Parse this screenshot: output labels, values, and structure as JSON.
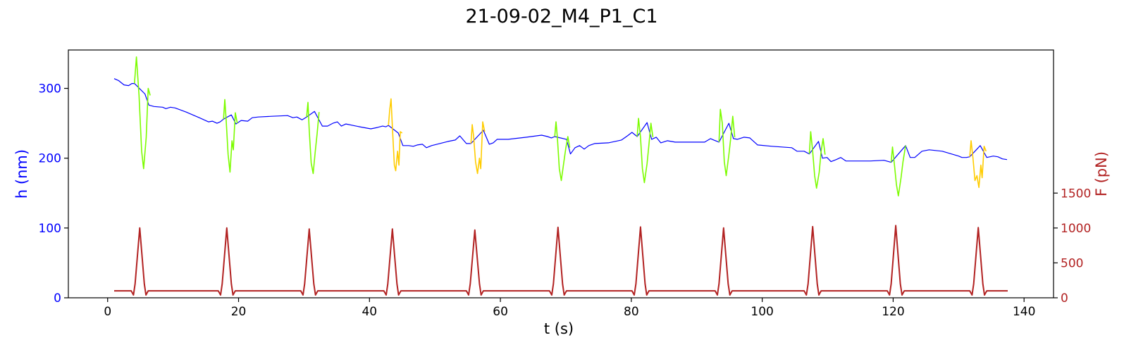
{
  "chart_data": {
    "type": "line",
    "title": "21-09-02_M4_P1_C1",
    "xlabel": "t (s)",
    "ylabel_left": "h (nm)",
    "ylabel_right": "F (pN)",
    "xlim": [
      -6,
      144.5
    ],
    "ylim_left": [
      0,
      355
    ],
    "ylim_right": [
      0,
      3550
    ],
    "x_ticks": [
      0,
      20,
      40,
      60,
      80,
      100,
      120,
      140
    ],
    "y_ticks_left": [
      0,
      100,
      200,
      300
    ],
    "y_ticks_right": [
      0,
      500,
      1000,
      1500
    ],
    "grid": false,
    "colors": {
      "baseline": "#0000ff",
      "compression_green": "#7cfc00",
      "compression_yellow": "#ffcc00",
      "force": "#b22222",
      "axis_left": "#0000ff",
      "axis_right": "#b22222"
    },
    "series": [
      {
        "axis": "left",
        "color_key": "baseline",
        "points": [
          [
            1,
            314
          ],
          [
            1.7,
            311
          ],
          [
            2.5,
            305
          ],
          [
            3.2,
            304
          ],
          [
            3.7,
            307
          ],
          [
            4.1,
            307
          ],
          [
            5.7,
            292
          ],
          [
            6.3,
            276
          ],
          [
            7.1,
            274
          ],
          [
            8.4,
            273
          ],
          [
            8.9,
            271
          ],
          [
            9.6,
            273
          ],
          [
            10.3,
            272
          ],
          [
            12,
            266
          ],
          [
            14,
            258
          ],
          [
            15.4,
            252
          ],
          [
            16,
            253
          ],
          [
            16.7,
            250
          ],
          [
            17.2,
            252
          ],
          [
            17.7,
            256
          ],
          [
            18.9,
            262
          ],
          [
            19.6,
            249
          ],
          [
            20.4,
            254
          ],
          [
            21.4,
            253
          ],
          [
            22.1,
            258
          ],
          [
            23,
            259
          ],
          [
            25,
            260
          ],
          [
            27.5,
            261
          ],
          [
            28.3,
            258
          ],
          [
            28.9,
            259
          ],
          [
            29.7,
            255
          ],
          [
            30.4,
            259
          ],
          [
            31.6,
            267
          ],
          [
            32.8,
            246
          ],
          [
            33.6,
            246
          ],
          [
            34.4,
            250
          ],
          [
            35.1,
            252
          ],
          [
            35.7,
            246
          ],
          [
            36.4,
            249
          ],
          [
            38.5,
            245
          ],
          [
            40.2,
            242
          ],
          [
            41.2,
            244
          ],
          [
            42,
            246
          ],
          [
            42.5,
            245
          ],
          [
            42.9,
            247
          ],
          [
            44.4,
            236
          ],
          [
            45.1,
            218
          ],
          [
            46,
            218
          ],
          [
            46.7,
            217
          ],
          [
            47.3,
            219
          ],
          [
            48.1,
            220
          ],
          [
            48.7,
            215
          ],
          [
            49.5,
            218
          ],
          [
            52,
            224
          ],
          [
            53.1,
            226
          ],
          [
            53.8,
            232
          ],
          [
            54.8,
            221
          ],
          [
            55.5,
            221
          ],
          [
            57.4,
            240
          ],
          [
            58.3,
            220
          ],
          [
            58.9,
            222
          ],
          [
            59.5,
            227
          ],
          [
            61.2,
            227
          ],
          [
            64,
            230
          ],
          [
            66.3,
            233
          ],
          [
            67.2,
            231
          ],
          [
            67.8,
            229
          ],
          [
            68.3,
            231
          ],
          [
            70.1,
            227
          ],
          [
            70.7,
            206
          ],
          [
            71.4,
            215
          ],
          [
            72.1,
            218
          ],
          [
            72.8,
            213
          ],
          [
            73.5,
            218
          ],
          [
            74.4,
            221
          ],
          [
            76.5,
            222
          ],
          [
            78.5,
            226
          ],
          [
            79.4,
            232
          ],
          [
            80.1,
            237
          ],
          [
            80.9,
            231
          ],
          [
            82.4,
            251
          ],
          [
            83.1,
            227
          ],
          [
            83.8,
            230
          ],
          [
            84.5,
            222
          ],
          [
            85.5,
            225
          ],
          [
            86.7,
            223
          ],
          [
            88.5,
            223
          ],
          [
            91.2,
            223
          ],
          [
            92.1,
            228
          ],
          [
            92.6,
            226
          ],
          [
            93.4,
            223
          ],
          [
            94.9,
            250
          ],
          [
            95.6,
            228
          ],
          [
            96.2,
            227
          ],
          [
            97.2,
            230
          ],
          [
            98.1,
            229
          ],
          [
            99.3,
            219
          ],
          [
            101.5,
            217
          ],
          [
            104.5,
            215
          ],
          [
            105.3,
            210
          ],
          [
            106.4,
            210
          ],
          [
            107.2,
            206
          ],
          [
            108.6,
            224
          ],
          [
            109.2,
            200
          ],
          [
            109.9,
            201
          ],
          [
            110.5,
            195
          ],
          [
            111.3,
            198
          ],
          [
            112,
            201
          ],
          [
            112.8,
            196
          ],
          [
            116.5,
            196
          ],
          [
            118.6,
            197
          ],
          [
            119.7,
            194
          ],
          [
            121.9,
            218
          ],
          [
            122.6,
            201
          ],
          [
            123.3,
            201
          ],
          [
            124.4,
            210
          ],
          [
            125.5,
            212
          ],
          [
            127.5,
            210
          ],
          [
            130,
            203
          ],
          [
            130.5,
            201
          ],
          [
            131.2,
            201
          ],
          [
            131.7,
            202
          ],
          [
            133.3,
            218
          ],
          [
            134.3,
            201
          ],
          [
            135.3,
            203
          ],
          [
            136,
            202
          ],
          [
            136.7,
            199
          ],
          [
            137.4,
            198
          ]
        ]
      },
      {
        "axis": "left",
        "color_key": "compression_green",
        "points": [
          [
            4.1,
            307
          ],
          [
            4.4,
            345
          ],
          [
            4.8,
            290
          ],
          [
            5.2,
            210
          ],
          [
            5.5,
            185
          ],
          [
            5.9,
            230
          ],
          [
            6.2,
            300
          ],
          [
            6.5,
            290
          ]
        ]
      },
      {
        "axis": "left",
        "color_key": "compression_green",
        "points": [
          [
            17.7,
            256
          ],
          [
            17.9,
            284
          ],
          [
            18.1,
            255
          ],
          [
            18.4,
            205
          ],
          [
            18.7,
            180
          ],
          [
            19,
            225
          ],
          [
            19.2,
            212
          ],
          [
            19.5,
            265
          ],
          [
            19.8,
            250
          ]
        ]
      },
      {
        "axis": "left",
        "color_key": "compression_green",
        "points": [
          [
            30.4,
            259
          ],
          [
            30.6,
            280
          ],
          [
            30.8,
            240
          ],
          [
            31.1,
            193
          ],
          [
            31.4,
            178
          ],
          [
            31.7,
            208
          ],
          [
            32,
            235
          ],
          [
            32.3,
            266
          ]
        ]
      },
      {
        "axis": "left",
        "color_key": "compression_yellow",
        "points": [
          [
            42.9,
            247
          ],
          [
            43.1,
            270
          ],
          [
            43.3,
            285
          ],
          [
            43.5,
            245
          ],
          [
            43.8,
            190
          ],
          [
            44,
            182
          ],
          [
            44.3,
            210
          ],
          [
            44.5,
            190
          ],
          [
            44.7,
            238
          ],
          [
            45,
            236
          ]
        ]
      },
      {
        "axis": "left",
        "color_key": "compression_yellow",
        "points": [
          [
            55.5,
            221
          ],
          [
            55.7,
            248
          ],
          [
            55.9,
            232
          ],
          [
            56.2,
            195
          ],
          [
            56.5,
            178
          ],
          [
            56.8,
            200
          ],
          [
            57,
            185
          ],
          [
            57.3,
            252
          ],
          [
            57.6,
            238
          ]
        ]
      },
      {
        "axis": "left",
        "color_key": "compression_green",
        "points": [
          [
            68.3,
            231
          ],
          [
            68.5,
            252
          ],
          [
            68.7,
            230
          ],
          [
            69,
            185
          ],
          [
            69.3,
            168
          ],
          [
            69.7,
            195
          ],
          [
            70,
            215
          ],
          [
            70.3,
            231
          ],
          [
            70.6,
            215
          ]
        ]
      },
      {
        "axis": "left",
        "color_key": "compression_green",
        "points": [
          [
            80.9,
            231
          ],
          [
            81.1,
            257
          ],
          [
            81.4,
            230
          ],
          [
            81.7,
            185
          ],
          [
            82,
            165
          ],
          [
            82.4,
            192
          ],
          [
            82.7,
            220
          ],
          [
            83,
            250
          ],
          [
            83.3,
            230
          ]
        ]
      },
      {
        "axis": "left",
        "color_key": "compression_green",
        "points": [
          [
            93.4,
            223
          ],
          [
            93.6,
            270
          ],
          [
            93.9,
            250
          ],
          [
            94.2,
            195
          ],
          [
            94.5,
            175
          ],
          [
            94.9,
            205
          ],
          [
            95.2,
            230
          ],
          [
            95.5,
            260
          ],
          [
            95.8,
            230
          ]
        ]
      },
      {
        "axis": "left",
        "color_key": "compression_green",
        "points": [
          [
            107.2,
            206
          ],
          [
            107.4,
            238
          ],
          [
            107.7,
            210
          ],
          [
            108,
            175
          ],
          [
            108.3,
            157
          ],
          [
            108.7,
            180
          ],
          [
            109,
            210
          ],
          [
            109.3,
            228
          ],
          [
            109.6,
            205
          ]
        ]
      },
      {
        "axis": "left",
        "color_key": "compression_green",
        "points": [
          [
            119.7,
            194
          ],
          [
            119.9,
            216
          ],
          [
            120.2,
            190
          ],
          [
            120.5,
            162
          ],
          [
            120.8,
            146
          ],
          [
            121.2,
            172
          ],
          [
            121.5,
            195
          ],
          [
            121.9,
            218
          ]
        ]
      },
      {
        "axis": "left",
        "color_key": "compression_yellow",
        "points": [
          [
            131.7,
            202
          ],
          [
            131.9,
            225
          ],
          [
            132.2,
            200
          ],
          [
            132.5,
            168
          ],
          [
            132.8,
            175
          ],
          [
            133.1,
            158
          ],
          [
            133.4,
            190
          ],
          [
            133.6,
            172
          ],
          [
            133.9,
            217
          ],
          [
            134.2,
            210
          ]
        ]
      },
      {
        "axis": "right",
        "color_key": "force",
        "baseline": 100,
        "dip": 40,
        "peaks": [
          {
            "t": 4.9,
            "F": 1000
          },
          {
            "t": 18.2,
            "F": 1000
          },
          {
            "t": 30.8,
            "F": 985
          },
          {
            "t": 43.5,
            "F": 985
          },
          {
            "t": 56.1,
            "F": 970
          },
          {
            "t": 68.8,
            "F": 1010
          },
          {
            "t": 81.4,
            "F": 1015
          },
          {
            "t": 94.1,
            "F": 1000
          },
          {
            "t": 107.7,
            "F": 1020
          },
          {
            "t": 120.4,
            "F": 1035
          },
          {
            "t": 133.0,
            "F": 1005
          }
        ],
        "t_start": 1,
        "t_end": 137.5
      }
    ]
  }
}
